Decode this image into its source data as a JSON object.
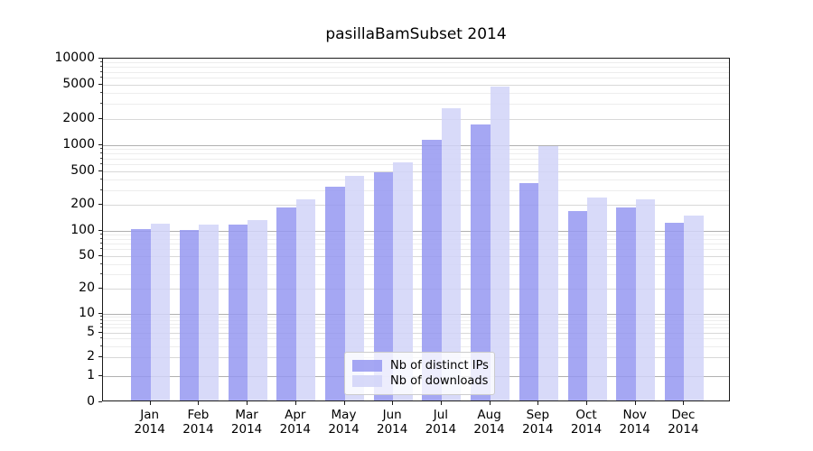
{
  "title": "pasillaBamSubset 2014",
  "legend": {
    "items": [
      {
        "label": "Nb of distinct IPs",
        "color": "#9598f1"
      },
      {
        "label": "Nb of downloads",
        "color": "#d1d4f8"
      }
    ]
  },
  "y_axis": {
    "tick_values": [
      0,
      1,
      2,
      5,
      10,
      20,
      50,
      100,
      200,
      500,
      1000,
      2000,
      5000,
      10000
    ]
  },
  "x_axis": {
    "year": "2014",
    "months": [
      "Jan",
      "Feb",
      "Mar",
      "Apr",
      "May",
      "Jun",
      "Jul",
      "Aug",
      "Sep",
      "Oct",
      "Nov",
      "Dec"
    ]
  },
  "chart_data": {
    "type": "bar",
    "title": "pasillaBamSubset 2014",
    "categories": [
      "Jan 2014",
      "Feb 2014",
      "Mar 2014",
      "Apr 2014",
      "May 2014",
      "Jun 2014",
      "Jul 2014",
      "Aug 2014",
      "Sep 2014",
      "Oct 2014",
      "Nov 2014",
      "Dec 2014"
    ],
    "series": [
      {
        "name": "Nb of distinct IPs",
        "color": "#9598f1",
        "values": [
          100,
          98,
          113,
          178,
          313,
          465,
          1100,
          1640,
          345,
          163,
          180,
          118
        ]
      },
      {
        "name": "Nb of downloads",
        "color": "#d1d4f8",
        "values": [
          115,
          112,
          126,
          222,
          419,
          605,
          2550,
          4570,
          940,
          232,
          222,
          144
        ]
      }
    ],
    "xlabel": "",
    "ylabel": "",
    "yscale": "log-like with 0 baseline",
    "ylim": [
      0,
      10000
    ],
    "ytick_labels": [
      "0",
      "1",
      "2",
      "5",
      "10",
      "20",
      "50",
      "100",
      "200",
      "500",
      "1000",
      "2000",
      "5000",
      "10000"
    ],
    "grid": true,
    "legend_position": "bottom-center inside plot"
  }
}
